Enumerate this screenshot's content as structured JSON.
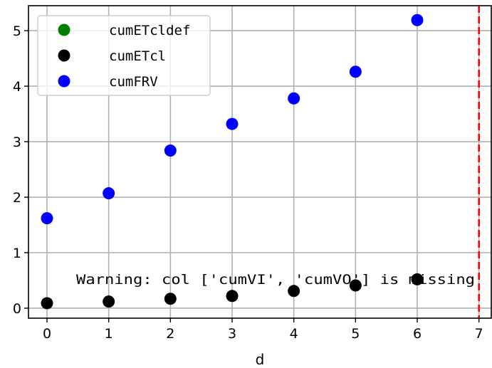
{
  "chart_data": {
    "type": "scatter",
    "title": "",
    "xlabel": "d",
    "ylabel": "",
    "xlim": [
      -0.3,
      7.2
    ],
    "ylim": [
      -0.18,
      5.45
    ],
    "xticks": [
      "0",
      "1",
      "2",
      "3",
      "4",
      "5",
      "6",
      "7"
    ],
    "yticks": [
      "0",
      "1",
      "2",
      "3",
      "4",
      "5"
    ],
    "grid": true,
    "legend_position": "upper-left",
    "series": [
      {
        "name": "cumETcldef",
        "color": "#008000",
        "x": [],
        "y": []
      },
      {
        "name": "cumETcl",
        "color": "#000000",
        "x": [
          0,
          1,
          2,
          3,
          4,
          5,
          6
        ],
        "y": [
          0.09,
          0.12,
          0.17,
          0.22,
          0.31,
          0.41,
          0.52
        ]
      },
      {
        "name": "cumFRV",
        "color": "#0000ff",
        "x": [
          0,
          1,
          2,
          3,
          4,
          5,
          6
        ],
        "y": [
          1.62,
          2.07,
          2.84,
          3.32,
          3.78,
          4.26,
          5.19
        ]
      }
    ],
    "vline": {
      "x": 7,
      "color": "#ff0000",
      "style": "dashed"
    },
    "annotation": "Warning: col ['cumVI', 'cumVO'] is missing"
  }
}
